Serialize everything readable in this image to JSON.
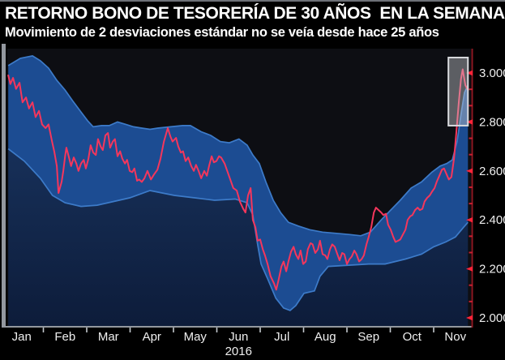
{
  "header": {
    "title": "RETORNO BONO DE TESORERÍA DE 30 AÑOS  EN LA SEMANA",
    "subtitle": "Movimiento de 2 desviaciones estándar no se veía desde hace 25 años"
  },
  "chart_data": {
    "type": "line",
    "description": "30-year Treasury bond yield through 2016 with a 2-standard-deviation band; post-election spike highlighted at right",
    "x_unit": "months since Jan 1 2016",
    "xlim": [
      0,
      10.86
    ],
    "ylim": [
      1.967,
      3.086
    ],
    "grid": false,
    "legend": "none",
    "x_labels": [
      "Jan",
      "Feb",
      "Mar",
      "Apr",
      "May",
      "Jun",
      "Jul",
      "Aug",
      "Sep",
      "Oct",
      "Nov"
    ],
    "year_label": "2016",
    "y_ticks": [
      {
        "value": 3.0,
        "label": "3.000"
      },
      {
        "value": 2.8,
        "label": "2.800"
      },
      {
        "value": 2.6,
        "label": "2.600"
      },
      {
        "value": 2.4,
        "label": "2.400"
      },
      {
        "value": 2.2,
        "label": "2.200"
      },
      {
        "value": 2.0,
        "label": "2.000"
      }
    ],
    "series": [
      {
        "name": "yield-line",
        "color": "#f5365c",
        "points": [
          [
            0.19,
            2.99
          ],
          [
            0.24,
            2.955
          ],
          [
            0.3,
            2.98
          ],
          [
            0.37,
            2.935
          ],
          [
            0.45,
            2.96
          ],
          [
            0.52,
            2.88
          ],
          [
            0.6,
            2.9
          ],
          [
            0.67,
            2.855
          ],
          [
            0.75,
            2.88
          ],
          [
            0.82,
            2.82
          ],
          [
            0.9,
            2.845
          ],
          [
            0.97,
            2.79
          ],
          [
            1.05,
            2.775
          ],
          [
            1.12,
            2.79
          ],
          [
            1.2,
            2.72
          ],
          [
            1.25,
            2.68
          ],
          [
            1.31,
            2.62
          ],
          [
            1.35,
            2.51
          ],
          [
            1.42,
            2.555
          ],
          [
            1.46,
            2.6
          ],
          [
            1.5,
            2.66
          ],
          [
            1.53,
            2.695
          ],
          [
            1.59,
            2.655
          ],
          [
            1.64,
            2.62
          ],
          [
            1.7,
            2.655
          ],
          [
            1.76,
            2.63
          ],
          [
            1.81,
            2.6
          ],
          [
            1.87,
            2.63
          ],
          [
            1.93,
            2.645
          ],
          [
            1.98,
            2.61
          ],
          [
            2.04,
            2.65
          ],
          [
            2.09,
            2.705
          ],
          [
            2.15,
            2.675
          ],
          [
            2.21,
            2.665
          ],
          [
            2.26,
            2.73
          ],
          [
            2.32,
            2.7
          ],
          [
            2.37,
            2.685
          ],
          [
            2.43,
            2.745
          ],
          [
            2.49,
            2.755
          ],
          [
            2.54,
            2.695
          ],
          [
            2.6,
            2.72
          ],
          [
            2.65,
            2.73
          ],
          [
            2.71,
            2.66
          ],
          [
            2.77,
            2.68
          ],
          [
            2.82,
            2.65
          ],
          [
            2.88,
            2.63
          ],
          [
            2.93,
            2.645
          ],
          [
            2.99,
            2.6
          ],
          [
            3.05,
            2.595
          ],
          [
            3.1,
            2.61
          ],
          [
            3.16,
            2.56
          ],
          [
            3.21,
            2.565
          ],
          [
            3.27,
            2.555
          ],
          [
            3.33,
            2.57
          ],
          [
            3.4,
            2.6
          ],
          [
            3.48,
            2.565
          ],
          [
            3.55,
            2.585
          ],
          [
            3.63,
            2.605
          ],
          [
            3.7,
            2.65
          ],
          [
            3.78,
            2.72
          ],
          [
            3.87,
            2.775
          ],
          [
            3.93,
            2.74
          ],
          [
            3.98,
            2.72
          ],
          [
            4.06,
            2.735
          ],
          [
            4.11,
            2.7
          ],
          [
            4.17,
            2.675
          ],
          [
            4.22,
            2.68
          ],
          [
            4.28,
            2.64
          ],
          [
            4.34,
            2.655
          ],
          [
            4.41,
            2.62
          ],
          [
            4.47,
            2.6
          ],
          [
            4.52,
            2.625
          ],
          [
            4.58,
            2.6
          ],
          [
            4.64,
            2.57
          ],
          [
            4.71,
            2.6
          ],
          [
            4.77,
            2.58
          ],
          [
            4.82,
            2.62
          ],
          [
            4.88,
            2.66
          ],
          [
            4.93,
            2.635
          ],
          [
            4.99,
            2.64
          ],
          [
            5.05,
            2.66
          ],
          [
            5.1,
            2.655
          ],
          [
            5.18,
            2.63
          ],
          [
            5.23,
            2.605
          ],
          [
            5.31,
            2.565
          ],
          [
            5.38,
            2.53
          ],
          [
            5.46,
            2.52
          ],
          [
            5.53,
            2.475
          ],
          [
            5.61,
            2.445
          ],
          [
            5.66,
            2.43
          ],
          [
            5.72,
            2.5
          ],
          [
            5.78,
            2.53
          ],
          [
            5.83,
            2.4
          ],
          [
            5.89,
            2.37
          ],
          [
            5.94,
            2.315
          ],
          [
            6.0,
            2.32
          ],
          [
            6.06,
            2.28
          ],
          [
            6.11,
            2.255
          ],
          [
            6.17,
            2.22
          ],
          [
            6.24,
            2.17
          ],
          [
            6.32,
            2.14
          ],
          [
            6.37,
            2.115
          ],
          [
            6.43,
            2.16
          ],
          [
            6.49,
            2.21
          ],
          [
            6.54,
            2.23
          ],
          [
            6.6,
            2.19
          ],
          [
            6.65,
            2.23
          ],
          [
            6.71,
            2.27
          ],
          [
            6.77,
            2.29
          ],
          [
            6.82,
            2.26
          ],
          [
            6.88,
            2.24
          ],
          [
            6.93,
            2.275
          ],
          [
            6.99,
            2.22
          ],
          [
            7.05,
            2.23
          ],
          [
            7.1,
            2.28
          ],
          [
            7.16,
            2.305
          ],
          [
            7.21,
            2.3
          ],
          [
            7.27,
            2.265
          ],
          [
            7.33,
            2.28
          ],
          [
            7.38,
            2.315
          ],
          [
            7.44,
            2.26
          ],
          [
            7.5,
            2.255
          ],
          [
            7.55,
            2.24
          ],
          [
            7.61,
            2.28
          ],
          [
            7.66,
            2.3
          ],
          [
            7.72,
            2.29
          ],
          [
            7.78,
            2.26
          ],
          [
            7.83,
            2.235
          ],
          [
            7.89,
            2.265
          ],
          [
            7.94,
            2.26
          ],
          [
            8.0,
            2.22
          ],
          [
            8.06,
            2.24
          ],
          [
            8.11,
            2.25
          ],
          [
            8.17,
            2.275
          ],
          [
            8.22,
            2.26
          ],
          [
            8.28,
            2.23
          ],
          [
            8.34,
            2.24
          ],
          [
            8.39,
            2.255
          ],
          [
            8.45,
            2.3
          ],
          [
            8.5,
            2.33
          ],
          [
            8.56,
            2.37
          ],
          [
            8.62,
            2.43
          ],
          [
            8.67,
            2.45
          ],
          [
            8.73,
            2.44
          ],
          [
            8.79,
            2.43
          ],
          [
            8.84,
            2.42
          ],
          [
            8.9,
            2.425
          ],
          [
            8.95,
            2.38
          ],
          [
            9.01,
            2.36
          ],
          [
            9.07,
            2.33
          ],
          [
            9.12,
            2.31
          ],
          [
            9.18,
            2.315
          ],
          [
            9.23,
            2.32
          ],
          [
            9.29,
            2.34
          ],
          [
            9.35,
            2.36
          ],
          [
            9.4,
            2.4
          ],
          [
            9.46,
            2.415
          ],
          [
            9.51,
            2.42
          ],
          [
            9.57,
            2.44
          ],
          [
            9.63,
            2.45
          ],
          [
            9.68,
            2.44
          ],
          [
            9.74,
            2.445
          ],
          [
            9.79,
            2.475
          ],
          [
            9.85,
            2.49
          ],
          [
            9.91,
            2.5
          ],
          [
            9.96,
            2.515
          ],
          [
            10.02,
            2.53
          ],
          [
            10.07,
            2.555
          ],
          [
            10.13,
            2.58
          ],
          [
            10.19,
            2.605
          ],
          [
            10.24,
            2.61
          ],
          [
            10.3,
            2.585
          ],
          [
            10.35,
            2.565
          ],
          [
            10.41,
            2.575
          ],
          [
            10.47,
            2.65
          ],
          [
            10.52,
            2.75
          ],
          [
            10.58,
            2.88
          ],
          [
            10.63,
            2.975
          ],
          [
            10.67,
            3.015
          ],
          [
            10.73,
            2.95
          ],
          [
            10.79,
            2.93
          ]
        ]
      },
      {
        "name": "band-upper",
        "color": "#3d7bc9",
        "points": [
          [
            0.19,
            3.03
          ],
          [
            0.47,
            3.06
          ],
          [
            0.75,
            3.07
          ],
          [
            0.93,
            3.05
          ],
          [
            1.12,
            3.02
          ],
          [
            1.31,
            2.97
          ],
          [
            1.5,
            2.93
          ],
          [
            1.68,
            2.885
          ],
          [
            1.87,
            2.84
          ],
          [
            2.02,
            2.805
          ],
          [
            2.15,
            2.78
          ],
          [
            2.34,
            2.785
          ],
          [
            2.52,
            2.785
          ],
          [
            2.71,
            2.8
          ],
          [
            2.9,
            2.79
          ],
          [
            3.08,
            2.78
          ],
          [
            3.27,
            2.775
          ],
          [
            3.46,
            2.77
          ],
          [
            3.64,
            2.775
          ],
          [
            3.93,
            2.78
          ],
          [
            4.21,
            2.785
          ],
          [
            4.39,
            2.785
          ],
          [
            4.64,
            2.76
          ],
          [
            4.86,
            2.745
          ],
          [
            5.08,
            2.72
          ],
          [
            5.29,
            2.715
          ],
          [
            5.51,
            2.73
          ],
          [
            5.7,
            2.705
          ],
          [
            5.83,
            2.665
          ],
          [
            5.98,
            2.63
          ],
          [
            6.13,
            2.555
          ],
          [
            6.3,
            2.48
          ],
          [
            6.47,
            2.43
          ],
          [
            6.65,
            2.39
          ],
          [
            6.88,
            2.375
          ],
          [
            7.14,
            2.36
          ],
          [
            7.44,
            2.35
          ],
          [
            7.76,
            2.345
          ],
          [
            8.07,
            2.34
          ],
          [
            8.32,
            2.335
          ],
          [
            8.54,
            2.35
          ],
          [
            8.79,
            2.4
          ],
          [
            9.01,
            2.44
          ],
          [
            9.23,
            2.48
          ],
          [
            9.48,
            2.53
          ],
          [
            9.72,
            2.555
          ],
          [
            9.96,
            2.595
          ],
          [
            10.15,
            2.62
          ],
          [
            10.3,
            2.63
          ],
          [
            10.43,
            2.645
          ],
          [
            10.54,
            2.72
          ],
          [
            10.63,
            2.83
          ],
          [
            10.71,
            2.92
          ],
          [
            10.79,
            2.95
          ]
        ]
      },
      {
        "name": "band-lower",
        "color": "#3d7bc9",
        "points": [
          [
            0.19,
            2.69
          ],
          [
            0.56,
            2.64
          ],
          [
            0.93,
            2.57
          ],
          [
            1.21,
            2.5
          ],
          [
            1.5,
            2.47
          ],
          [
            1.87,
            2.455
          ],
          [
            2.24,
            2.46
          ],
          [
            2.62,
            2.475
          ],
          [
            2.99,
            2.49
          ],
          [
            3.46,
            2.52
          ],
          [
            4.02,
            2.5
          ],
          [
            4.49,
            2.49
          ],
          [
            4.95,
            2.48
          ],
          [
            5.42,
            2.485
          ],
          [
            5.7,
            2.47
          ],
          [
            5.83,
            2.42
          ],
          [
            5.94,
            2.3
          ],
          [
            6.02,
            2.22
          ],
          [
            6.17,
            2.16
          ],
          [
            6.36,
            2.08
          ],
          [
            6.54,
            2.04
          ],
          [
            6.69,
            2.03
          ],
          [
            6.82,
            2.05
          ],
          [
            7.01,
            2.1
          ],
          [
            7.25,
            2.11
          ],
          [
            7.38,
            2.17
          ],
          [
            7.57,
            2.21
          ],
          [
            8.04,
            2.215
          ],
          [
            8.5,
            2.22
          ],
          [
            8.88,
            2.22
          ],
          [
            9.35,
            2.24
          ],
          [
            9.72,
            2.26
          ],
          [
            10.0,
            2.29
          ],
          [
            10.28,
            2.31
          ],
          [
            10.5,
            2.33
          ],
          [
            10.69,
            2.37
          ],
          [
            10.79,
            2.39
          ]
        ]
      }
    ],
    "annotation_box": {
      "x0_month": 10.34,
      "x1_month": 10.79,
      "y0_value": 2.785,
      "y1_value": 3.063,
      "fill": "rgba(203,205,210,0.42)",
      "stroke": "#d8dade"
    },
    "colors": {
      "band_fill": "#1c4c92",
      "band_edge": "#3d7bc9",
      "under_fill_top": "#173059",
      "under_fill_bottom": "#0d1c3a",
      "plot_bg": "#0d0e13",
      "y_axis_line": "#8c1822",
      "y_tick": "#ff2438",
      "y_minor_tick": "#c51f30",
      "axis_label": "#efefef",
      "frame_gray": "#93989f",
      "x_tick": "#c2c7cd"
    }
  }
}
